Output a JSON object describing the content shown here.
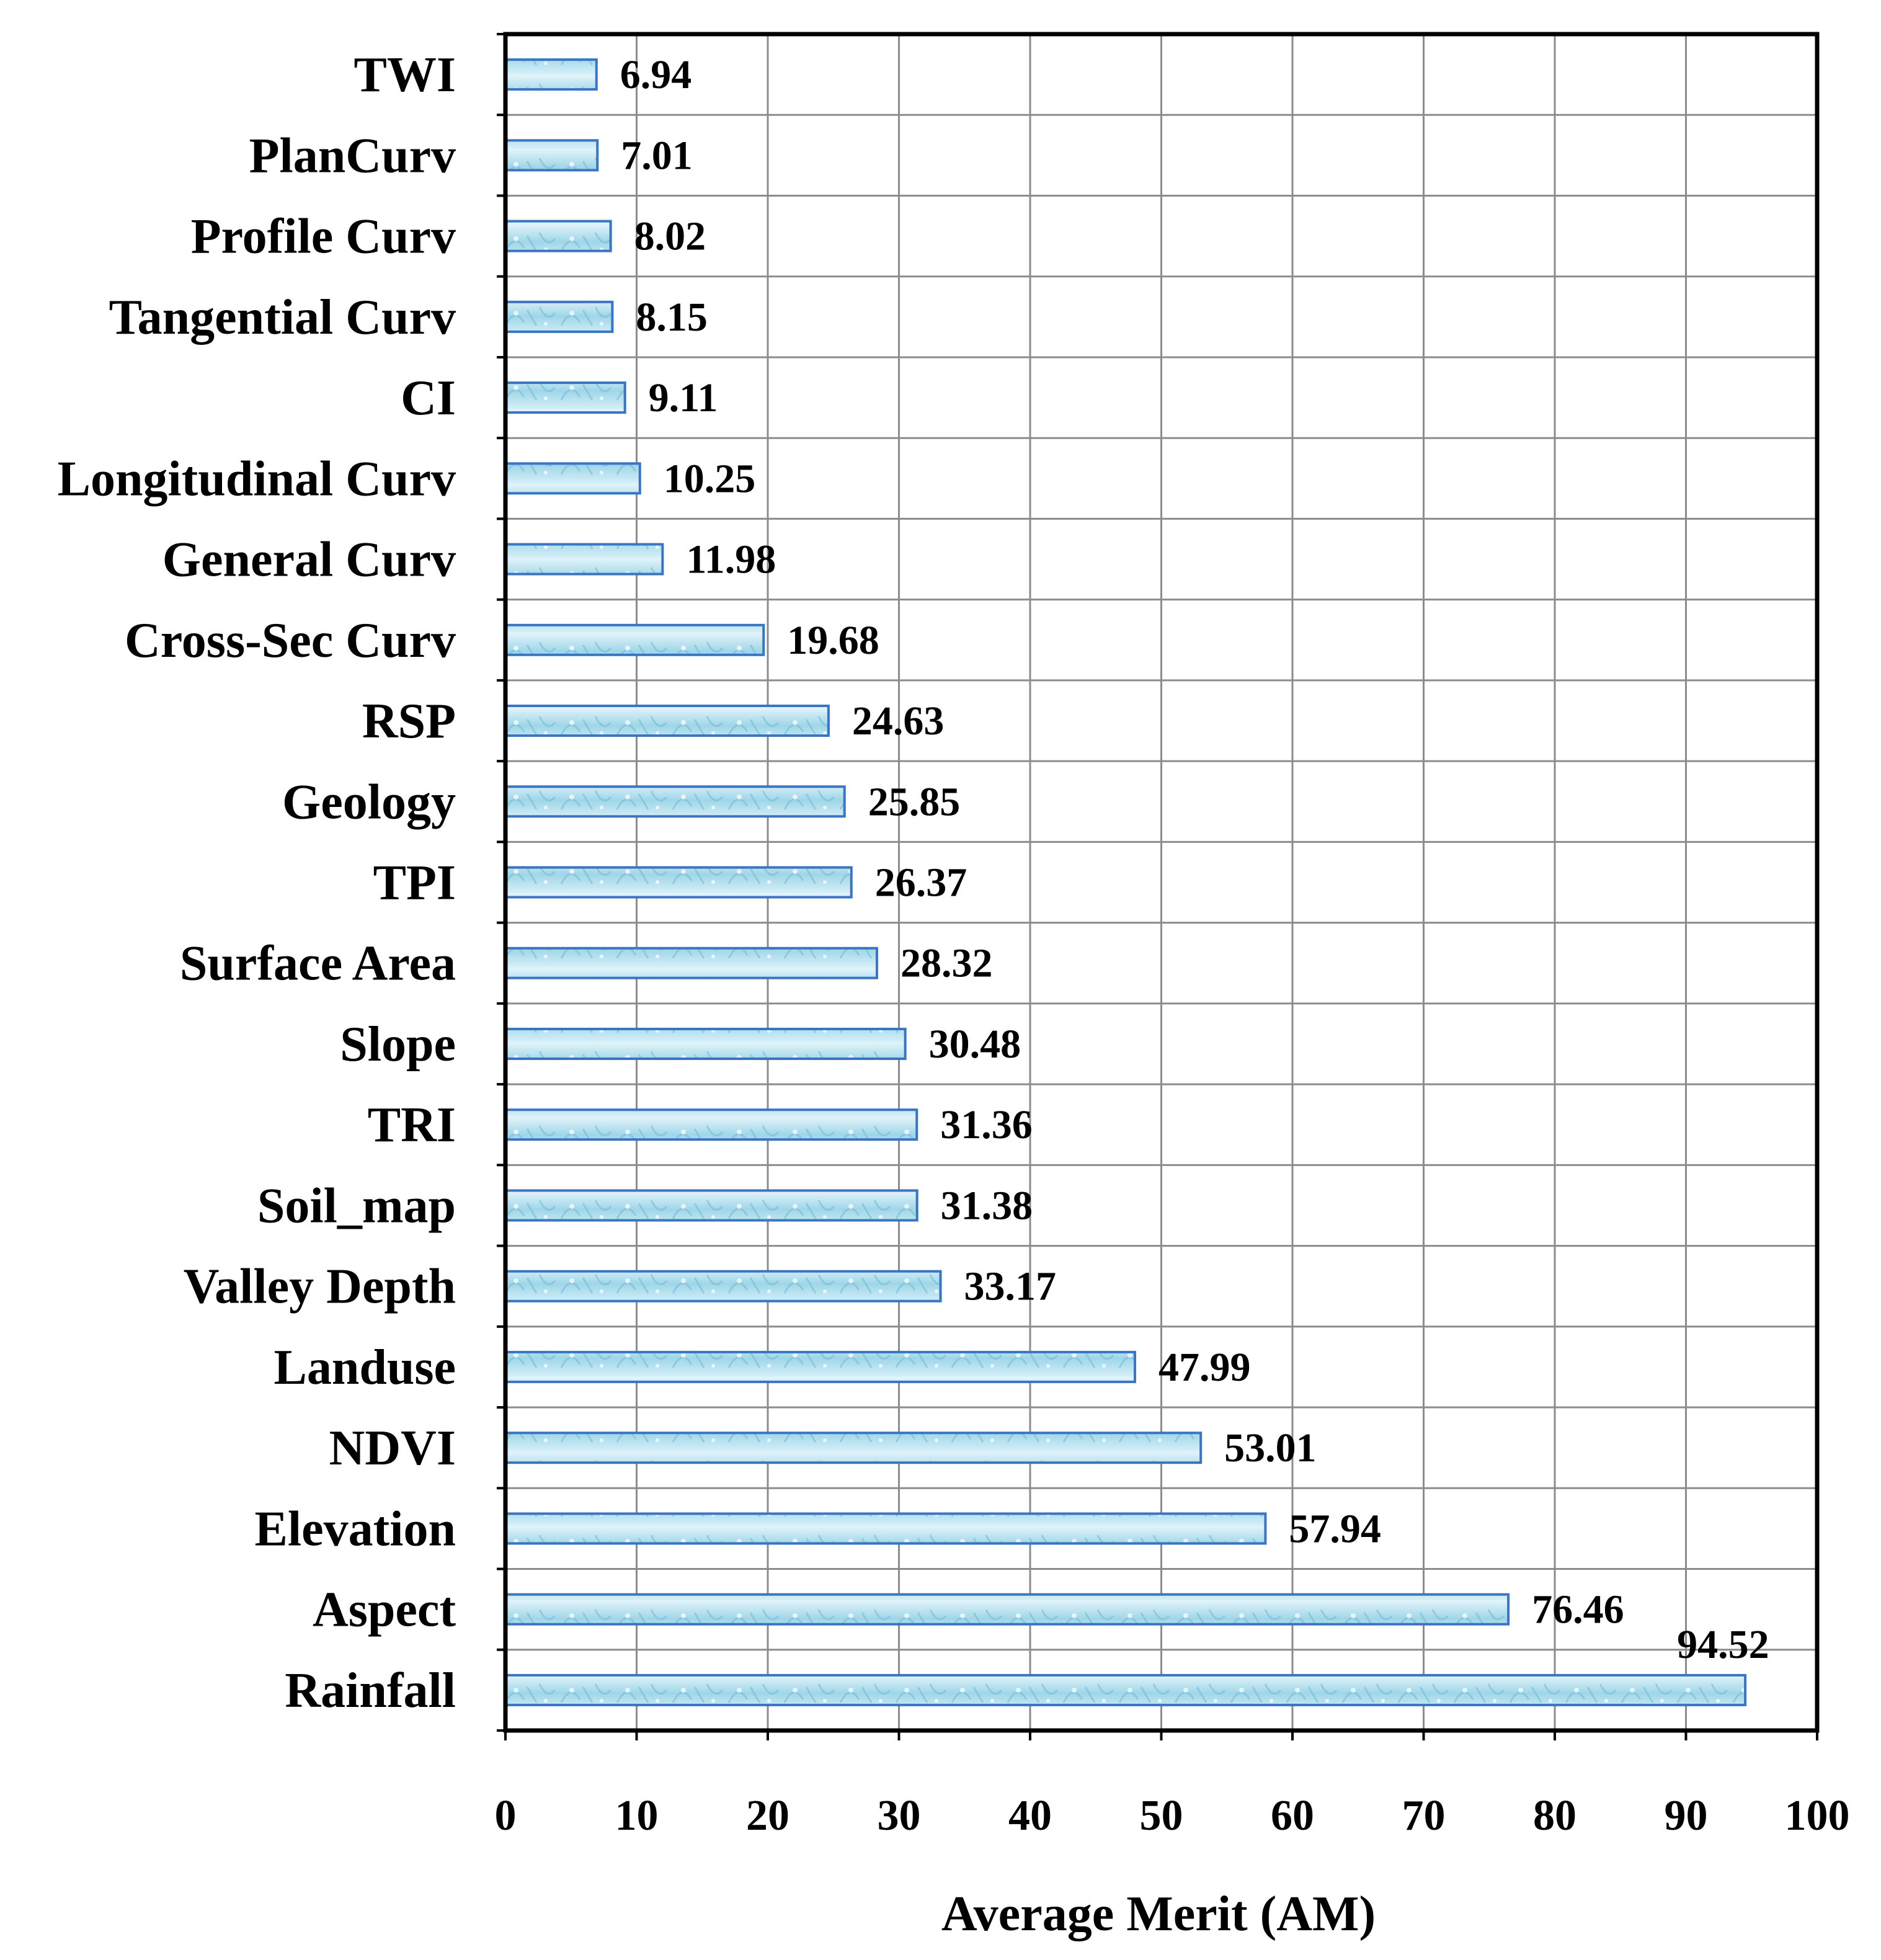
{
  "chart_data": {
    "type": "bar",
    "orientation": "horizontal",
    "categories": [
      "TWI",
      "PlanCurv",
      "Profile Curv",
      "Tangential Curv",
      "CI",
      "Longitudinal Curv",
      "General Curv",
      "Cross-Sec Curv",
      "RSP",
      "Geology",
      "TPI",
      "Surface Area",
      "Slope",
      "TRI",
      "Soil_map",
      "Valley Depth",
      "Landuse",
      "NDVI",
      "Elevation",
      "Aspect",
      "Rainfall"
    ],
    "values": [
      6.94,
      7.01,
      8.02,
      8.15,
      9.11,
      10.25,
      11.98,
      19.68,
      24.63,
      25.85,
      26.37,
      28.32,
      30.48,
      31.36,
      31.38,
      33.17,
      47.99,
      53.01,
      57.94,
      76.46,
      94.52
    ],
    "value_labels": [
      "6.94",
      "7.01",
      "8.02",
      "8.15",
      "9.11",
      "10.25",
      "11.98",
      "19.68",
      "24.63",
      "25.85",
      "26.37",
      "28.32",
      "30.48",
      "31.36",
      "31.38",
      "33.17",
      "47.99",
      "53.01",
      "57.94",
      "76.46",
      "94.52"
    ],
    "xlabel": "Average Merit (AM)",
    "ylabel": "",
    "title": "",
    "xlim": [
      0,
      100
    ],
    "xticks": [
      "0",
      "10",
      "20",
      "30",
      "40",
      "50",
      "60",
      "70",
      "80",
      "90",
      "100"
    ],
    "grid": true,
    "legend": "none",
    "colors": {
      "bar_fill": "#bfe6f2",
      "bar_fill_dark": "#7cc8dc",
      "bar_edge": "#3a75c4",
      "grid": "#8c8c8c",
      "frame": "#000000"
    }
  }
}
